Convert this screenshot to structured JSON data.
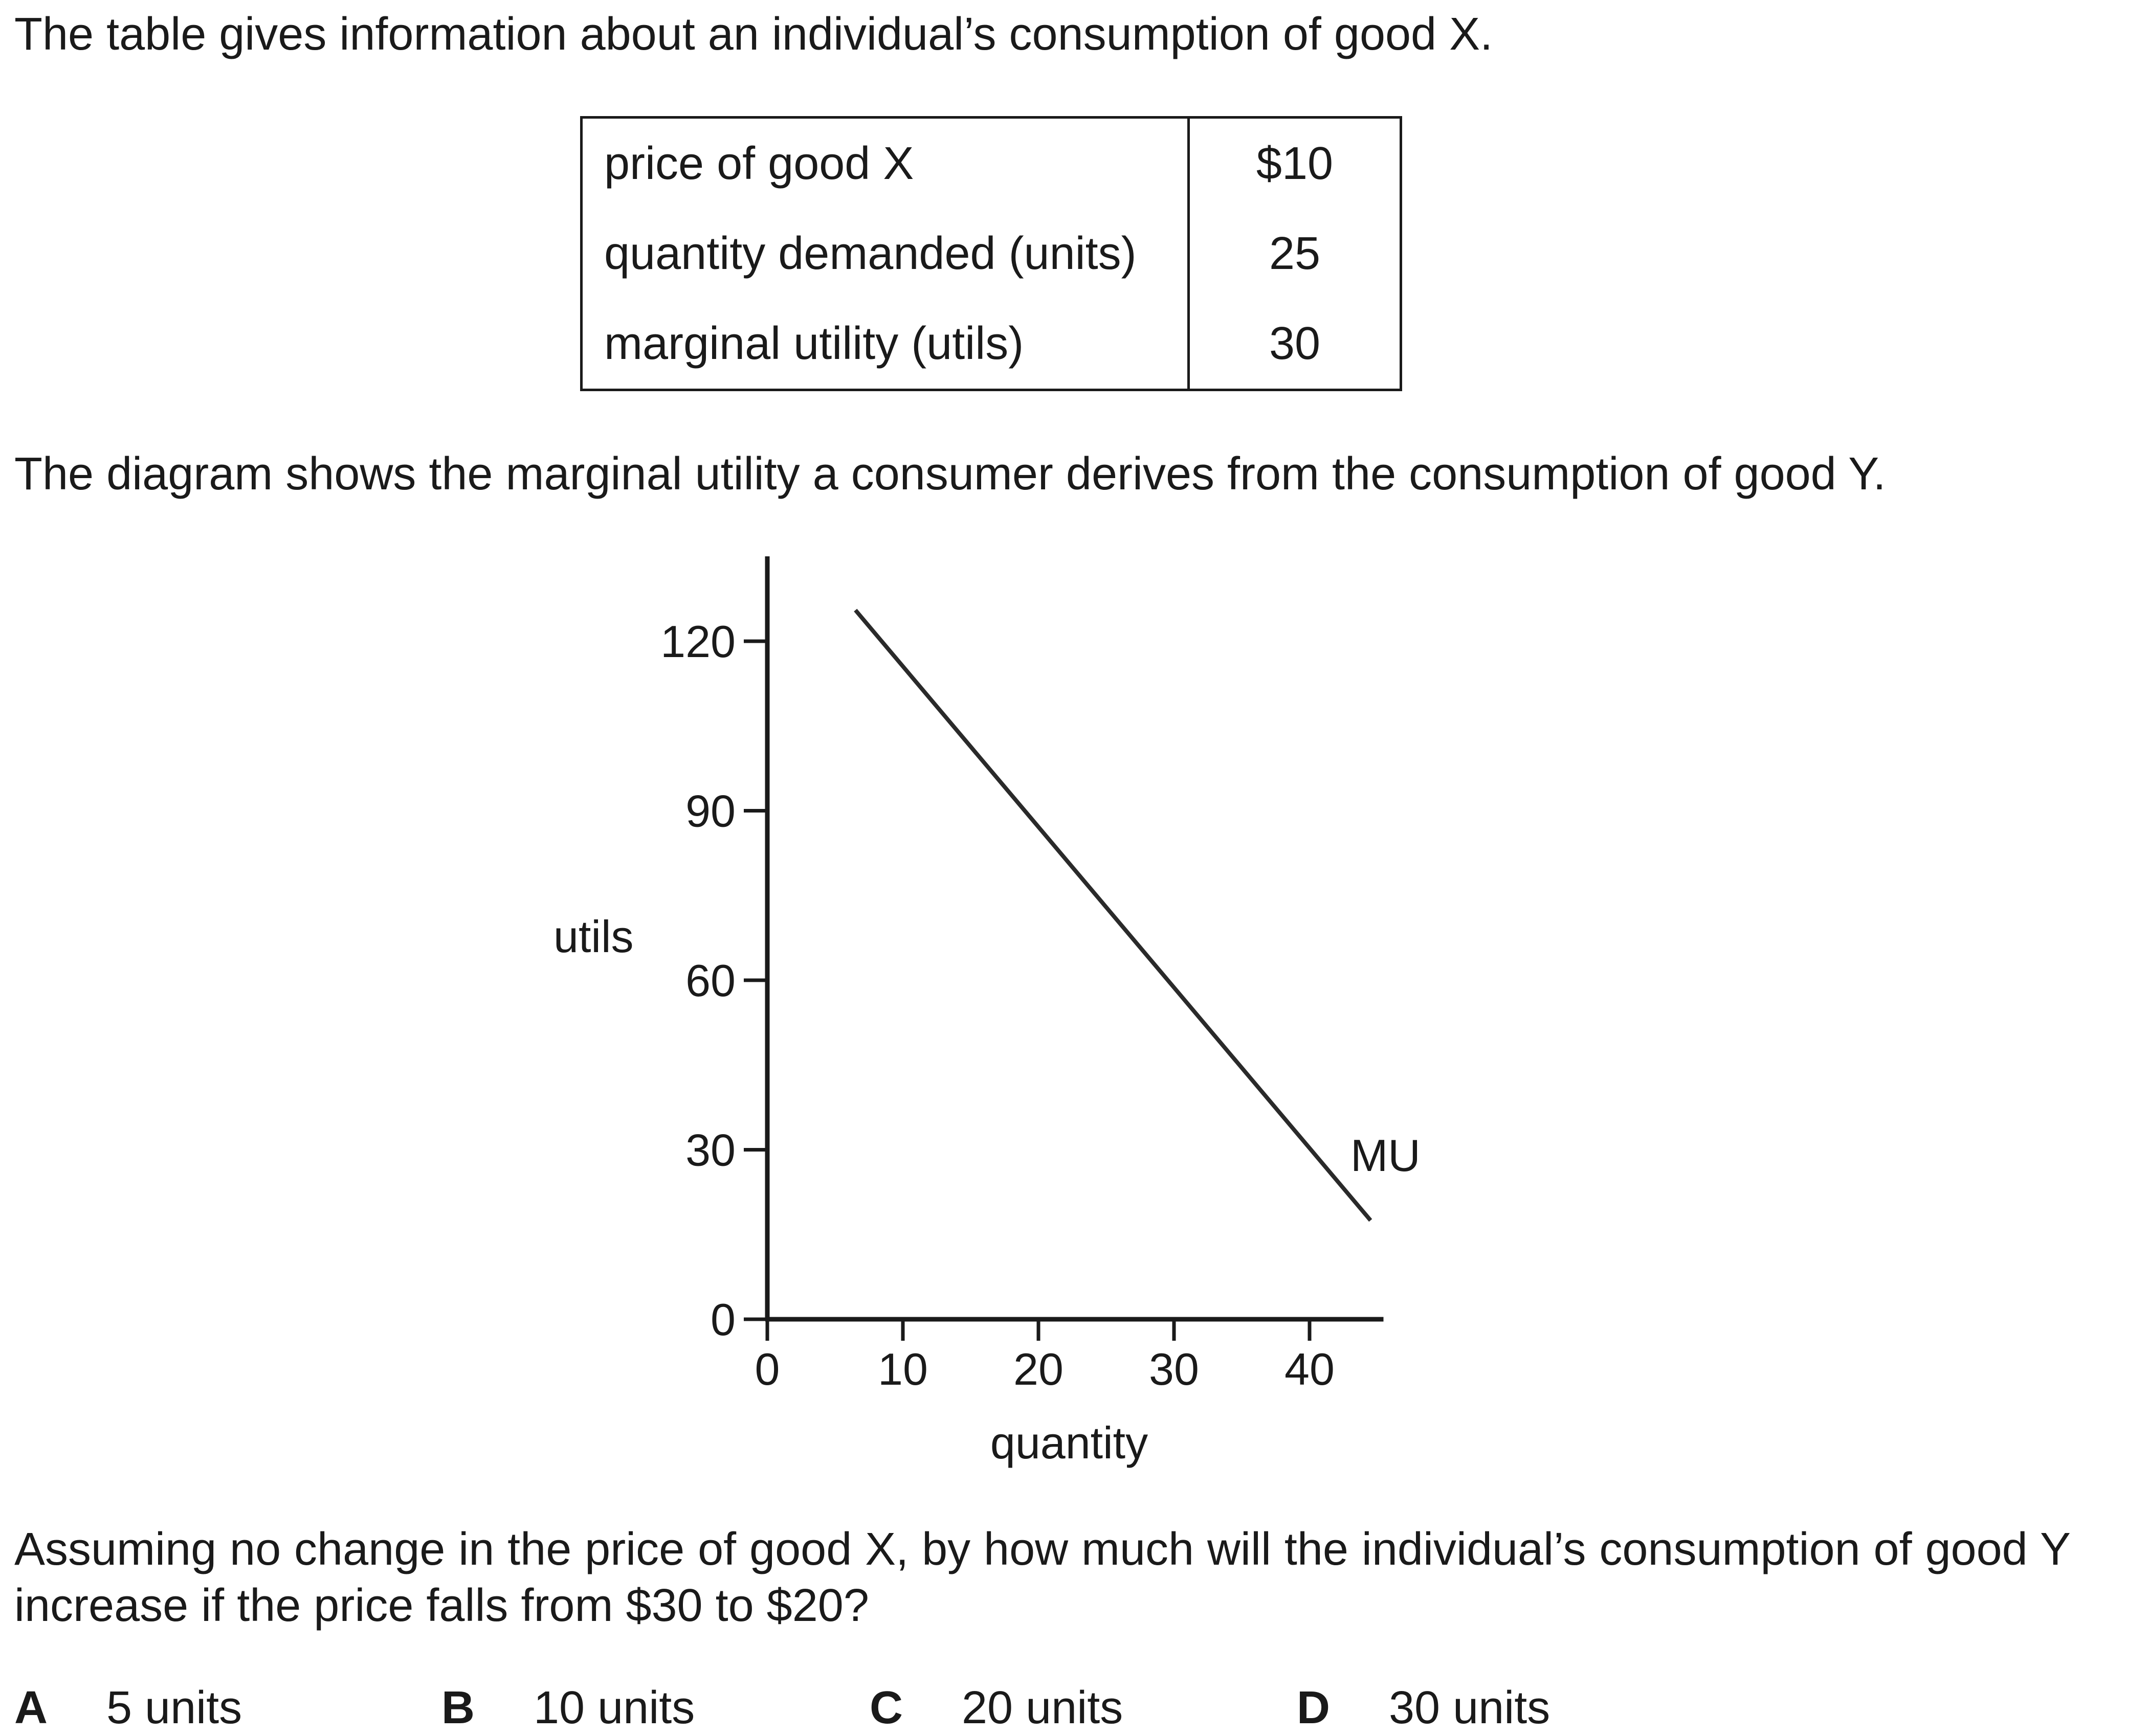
{
  "intro_text": "The table gives information about an individual’s consumption of good X.",
  "table": {
    "rows": [
      {
        "label": "price of good X",
        "value": "$10"
      },
      {
        "label": "quantity demanded (units)",
        "value": "25"
      },
      {
        "label": "marginal utility (utils)",
        "value": "30"
      }
    ]
  },
  "diagram_intro_text": "The diagram shows the marginal utility a consumer derives from the consumption of good Y.",
  "chart_data": {
    "type": "line",
    "xlabel": "quantity",
    "ylabel": "utils",
    "x_ticks": [
      0,
      10,
      20,
      30,
      40
    ],
    "y_ticks": [
      0,
      30,
      60,
      90,
      120
    ],
    "xlim": [
      0,
      45
    ],
    "ylim": [
      0,
      135
    ],
    "series": [
      {
        "name": "MU",
        "x": [
          6.5,
          44.5
        ],
        "y": [
          125.5,
          17.5
        ]
      }
    ]
  },
  "question_text": "Assuming no change in the price of good X, by how much will the individual’s consumption of good Y increase if the price falls from $30 to $20?",
  "options": [
    {
      "letter": "A",
      "text": "5 units"
    },
    {
      "letter": "B",
      "text": "10 units"
    },
    {
      "letter": "C",
      "text": "20 units"
    },
    {
      "letter": "D",
      "text": "30 units"
    }
  ]
}
